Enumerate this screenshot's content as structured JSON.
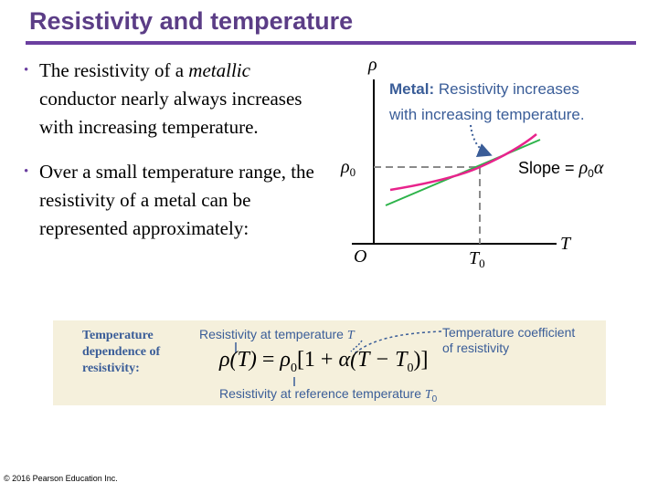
{
  "slide": {
    "title": "Resistivity and temperature",
    "bullets": [
      {
        "before": "The resistivity of a ",
        "em": "metallic",
        "after": " conductor nearly always increases with increasing temperature."
      },
      {
        "before": "Over a small temperature range, the resistivity of a metal can be represented approximately:",
        "em": "",
        "after": ""
      }
    ],
    "copyright": "© 2016 Pearson Education Inc."
  },
  "graph": {
    "y_axis_label": "ρ",
    "x_axis_label": "T",
    "origin_label": "O",
    "rho0_label": "ρ",
    "rho0_sub": "0",
    "t0_label": "T",
    "t0_sub": "0",
    "caption_bold": "Metal:",
    "caption_line1": " Resistivity increases",
    "caption_line2": "with increasing temperature.",
    "slope_label": "Slope = ",
    "slope_value": "ρ",
    "slope_sub": "0",
    "slope_alpha": "α",
    "curve_color": "#e8238c",
    "tangent_color": "#2db34a",
    "axis_color": "#000000",
    "dash_color": "#8a8a8a",
    "caption_color": "#3a5d98"
  },
  "equation": {
    "label": "Temperature dependence of resistivity:",
    "ann_top_left": "Resistivity at temperature ",
    "ann_top_left_var": "T",
    "ann_top_right_line1": "Temperature coefficient",
    "ann_top_right_line2": "of resistivity",
    "ann_bottom": "Resistivity at reference temperature ",
    "ann_bottom_var": "T",
    "ann_bottom_sub": "0",
    "lhs": "ρ(T)",
    "eq": " = ",
    "rho0": "ρ",
    "rho0_sub": "0",
    "bracket_open": "[1 + ",
    "alpha": "α",
    "paren": "(T − T",
    "t0_sub": "0",
    "close": ")]",
    "background": "#f5f0dc"
  }
}
